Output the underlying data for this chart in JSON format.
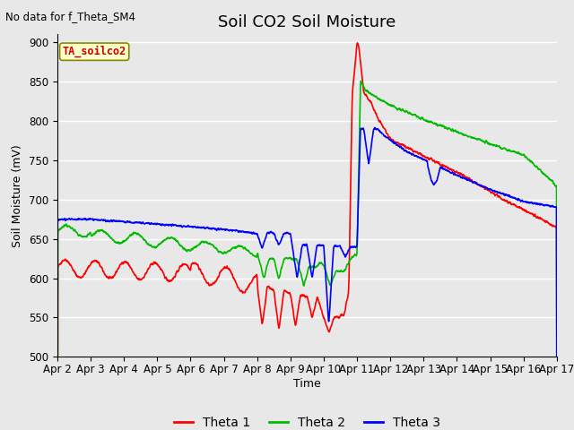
{
  "title": "Soil CO2 Soil Moisture",
  "top_left_text": "No data for f_Theta_SM4",
  "box_label": "TA_soilco2",
  "xlabel": "Time",
  "ylabel": "Soil Moisture (mV)",
  "ylim": [
    500,
    910
  ],
  "yticks": [
    500,
    550,
    600,
    650,
    700,
    750,
    800,
    850,
    900
  ],
  "xlim": [
    0,
    15
  ],
  "xtick_labels": [
    "Apr 2",
    "Apr 3",
    "Apr 4",
    "Apr 5",
    "Apr 6",
    "Apr 7",
    "Apr 8",
    "Apr 9",
    "Apr 10",
    "Apr 11",
    "Apr 12",
    "Apr 13",
    "Apr 14",
    "Apr 15",
    "Apr 16",
    "Apr 17"
  ],
  "bg_color": "#e8e8e8",
  "fig_bg": "#e8e8e8",
  "legend_labels": [
    "Theta 1",
    "Theta 2",
    "Theta 3"
  ],
  "legend_colors": [
    "#ff0000",
    "#00bb00",
    "#0000ff"
  ],
  "line_width": 1.2,
  "title_fontsize": 13,
  "label_fontsize": 9,
  "tick_fontsize": 8.5
}
